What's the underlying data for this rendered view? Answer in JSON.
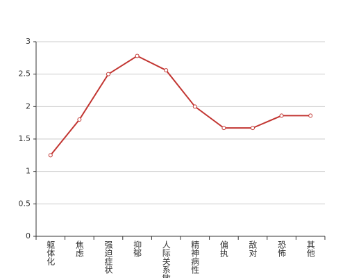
{
  "chart_data": {
    "type": "line",
    "categories": [
      "躯体化",
      "焦虑",
      "强迫症状",
      "抑郁",
      "人际关系敏感",
      "精神病性",
      "偏执",
      "敌对",
      "恐怖",
      "其他"
    ],
    "series": [
      {
        "color": "#c23531",
        "values": [
          1.25,
          1.8,
          2.5,
          2.78,
          2.56,
          2.0,
          1.67,
          1.67,
          1.86,
          1.86
        ]
      }
    ],
    "ylim": [
      0,
      3
    ],
    "yticks": [
      0,
      0.5,
      1,
      1.5,
      2,
      2.5,
      3
    ],
    "grid": true
  }
}
